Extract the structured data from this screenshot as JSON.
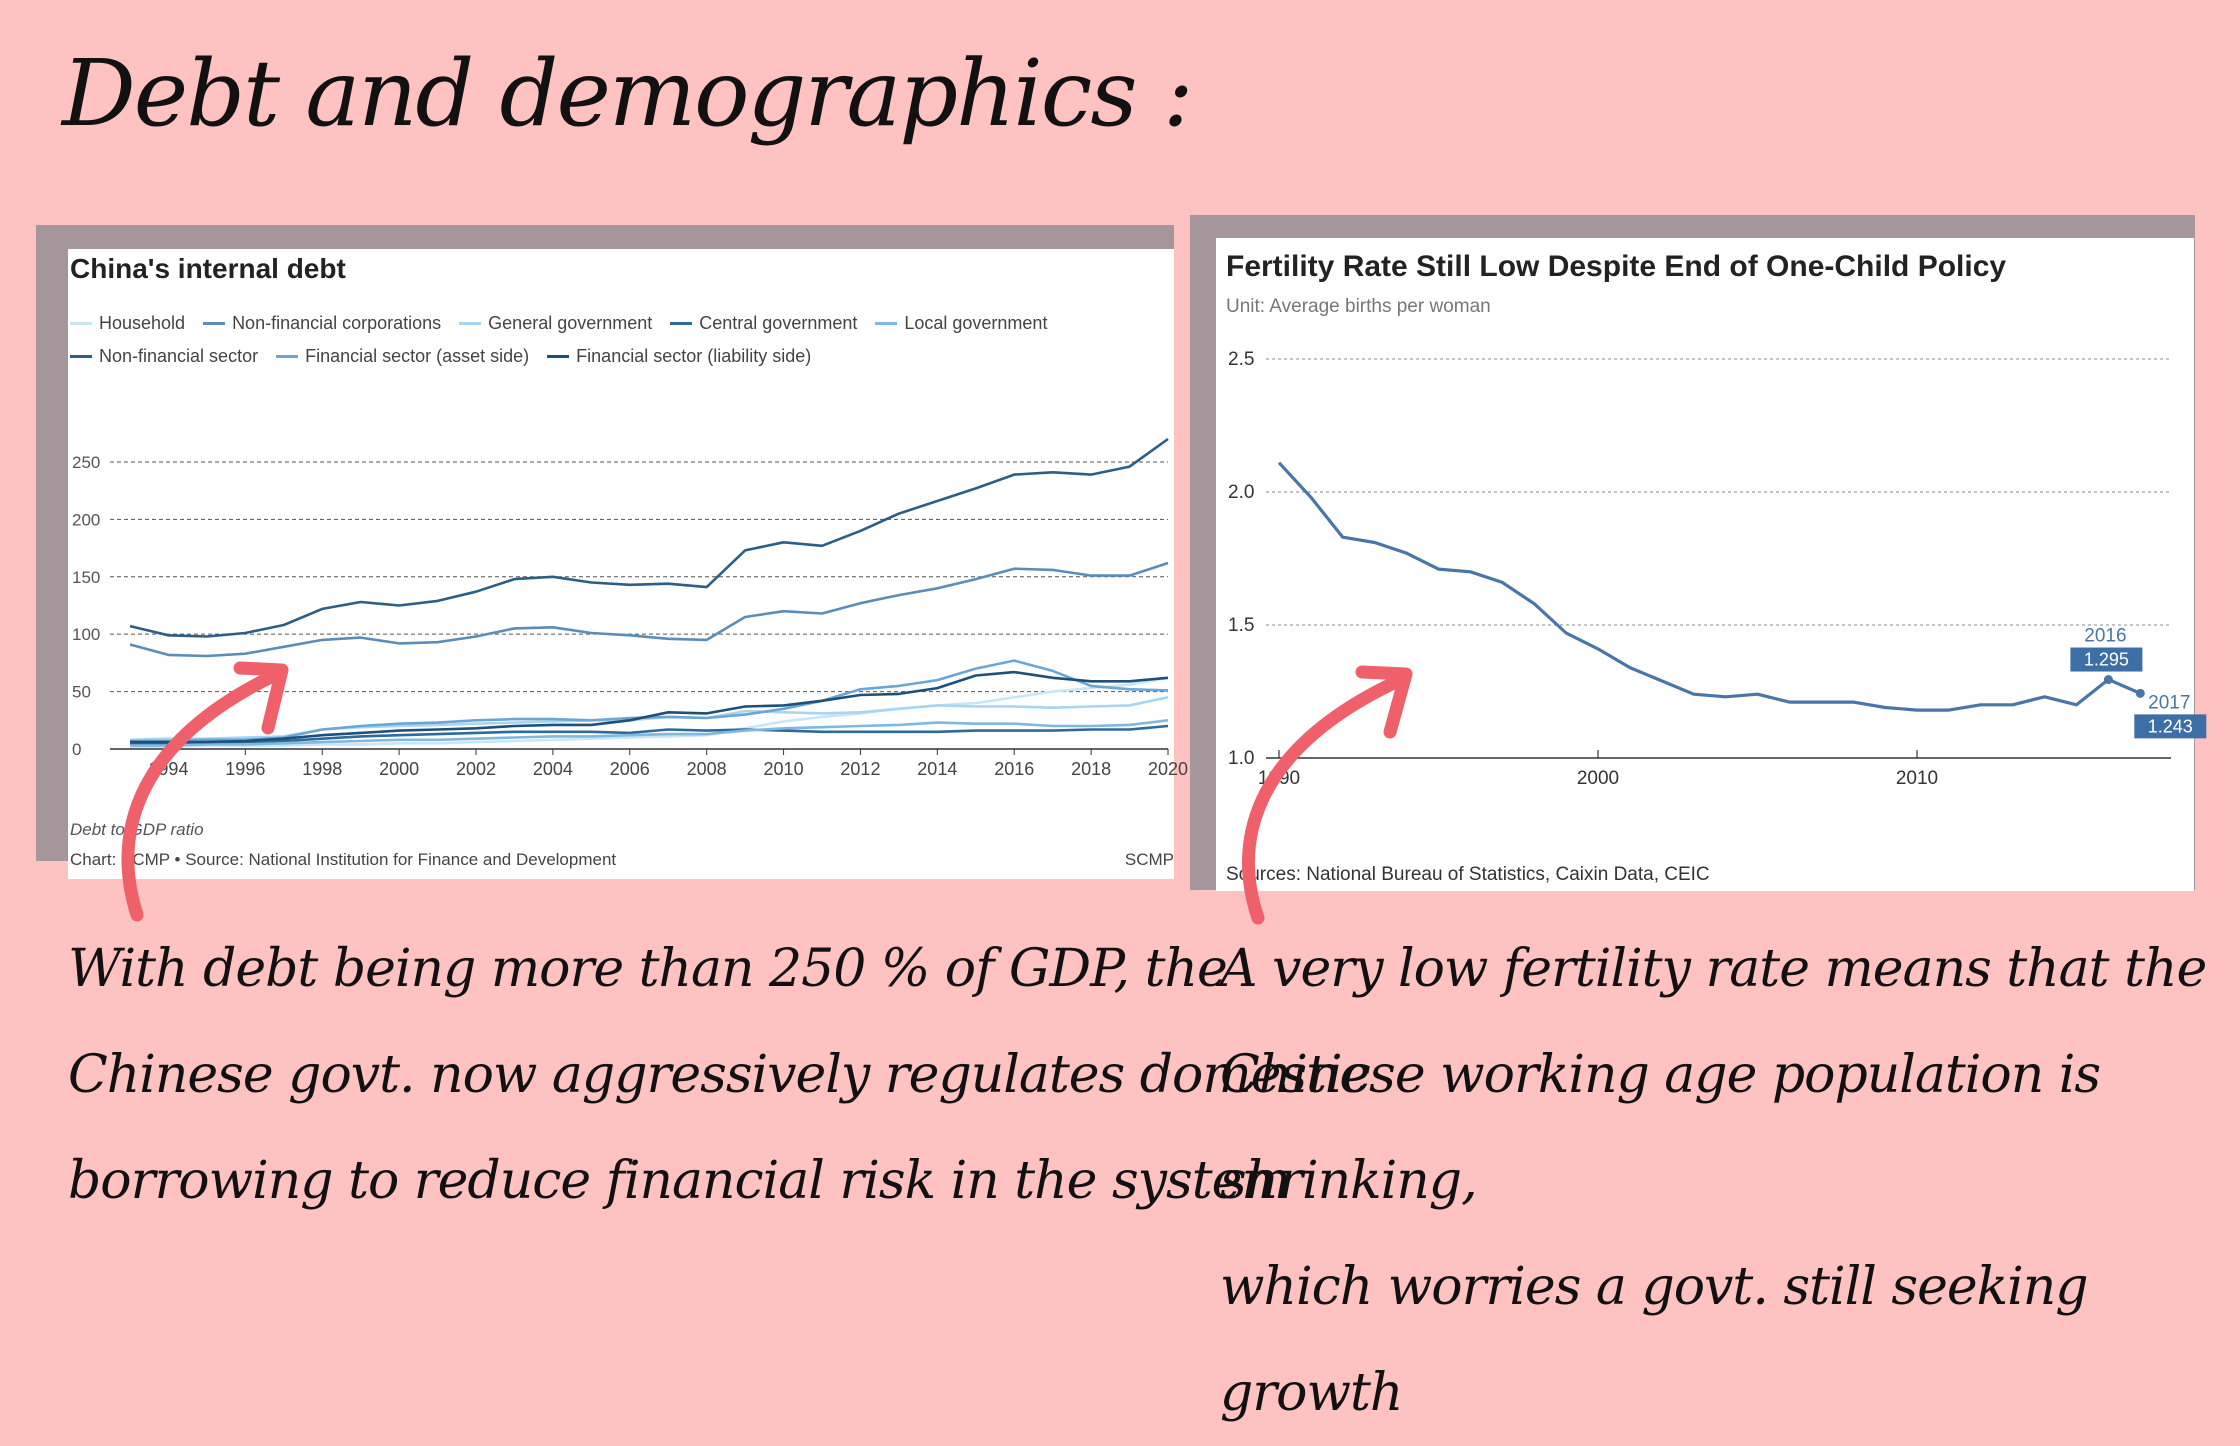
{
  "slide": {
    "title": "Debt and demographics :",
    "left_caption": [
      "With debt being more than 250 % of GDP, the",
      "Chinese govt. now aggressively regulates domestic",
      "borrowing to reduce financial risk in the system"
    ],
    "right_caption": [
      "A very low fertility rate means that the",
      "Chinese working age population is shrinking,",
      "which worries a govt. still seeking growth"
    ],
    "arrow_color": "#f0606b",
    "background": "#fec3c1"
  },
  "debt_chart": {
    "title": "China's internal debt",
    "note": "Debt to GDP ratio",
    "source": "Chart: SCMP • Source: National Institution for Finance and Development",
    "brand": "SCMP"
  },
  "fertility_chart": {
    "title": "Fertility Rate Still Low Despite End of One-Child Policy",
    "unit": "Unit: Average births per woman",
    "source": "Sources: National Bureau of Statistics, Caixin Data, CEIC"
  },
  "chart_data": [
    {
      "type": "line",
      "title": "China's internal debt",
      "ylabel": "Debt to GDP ratio",
      "ylim": [
        0,
        270
      ],
      "yticks": [
        0,
        50,
        100,
        150,
        200,
        250
      ],
      "xticks": [
        1994,
        1996,
        1998,
        2000,
        2002,
        2004,
        2006,
        2008,
        2010,
        2012,
        2014,
        2016,
        2018,
        2020
      ],
      "xlim": [
        1993,
        2020
      ],
      "grid": true,
      "legend_position": "top",
      "x": [
        1993,
        1994,
        1995,
        1996,
        1997,
        1998,
        1999,
        2000,
        2001,
        2002,
        2003,
        2004,
        2005,
        2006,
        2007,
        2008,
        2009,
        2010,
        2011,
        2012,
        2013,
        2014,
        2015,
        2016,
        2017,
        2018,
        2019,
        2020
      ],
      "series": [
        {
          "name": "Household",
          "color": "#c9e6f7",
          "values": [
            2,
            2,
            3,
            3,
            3,
            4,
            4,
            5,
            5,
            6,
            7,
            8,
            9,
            10,
            11,
            12,
            18,
            24,
            28,
            31,
            35,
            38,
            40,
            45,
            50,
            53,
            56,
            62
          ]
        },
        {
          "name": "Non-financial corporations",
          "color": "#5b8db8",
          "values": [
            91,
            82,
            81,
            83,
            89,
            95,
            97,
            92,
            93,
            98,
            105,
            106,
            101,
            99,
            96,
            95,
            115,
            120,
            118,
            127,
            134,
            140,
            148,
            157,
            156,
            151,
            151,
            162
          ]
        },
        {
          "name": "General government",
          "color": "#a8d5ef",
          "values": [
            8,
            9,
            9,
            10,
            11,
            17,
            19,
            20,
            21,
            22,
            23,
            24,
            25,
            25,
            28,
            27,
            33,
            32,
            31,
            32,
            35,
            38,
            37,
            37,
            36,
            37,
            38,
            45
          ]
        },
        {
          "name": "Central government",
          "color": "#2f6a9b",
          "values": [
            5,
            5,
            5,
            6,
            7,
            9,
            11,
            12,
            13,
            14,
            15,
            15,
            15,
            14,
            17,
            16,
            17,
            16,
            15,
            15,
            15,
            15,
            16,
            16,
            16,
            17,
            17,
            20
          ]
        },
        {
          "name": "Local government",
          "color": "#7fb8e0",
          "values": [
            3,
            3,
            4,
            4,
            5,
            6,
            7,
            8,
            8,
            9,
            10,
            11,
            11,
            12,
            13,
            13,
            16,
            18,
            19,
            20,
            21,
            23,
            22,
            22,
            20,
            20,
            21,
            25
          ]
        },
        {
          "name": "Non-financial sector",
          "color": "#2b5f86",
          "values": [
            107,
            99,
            98,
            101,
            108,
            122,
            128,
            125,
            129,
            137,
            148,
            150,
            145,
            143,
            144,
            141,
            173,
            180,
            177,
            190,
            205,
            216,
            227,
            239,
            241,
            239,
            246,
            270
          ]
        },
        {
          "name": "Financial sector (asset side)",
          "color": "#6aa6d6",
          "values": [
            7,
            7,
            8,
            8,
            10,
            17,
            20,
            22,
            23,
            25,
            26,
            26,
            25,
            27,
            28,
            27,
            30,
            35,
            42,
            52,
            55,
            60,
            70,
            77,
            68,
            55,
            52,
            51
          ]
        },
        {
          "name": "Financial sector (liability side)",
          "color": "#1e5079",
          "values": [
            6,
            6,
            6,
            7,
            9,
            12,
            14,
            16,
            17,
            18,
            20,
            21,
            21,
            25,
            32,
            31,
            37,
            38,
            42,
            47,
            48,
            53,
            64,
            67,
            62,
            59,
            59,
            62
          ]
        }
      ]
    },
    {
      "type": "line",
      "title": "Fertility Rate Still Low Despite End of One-Child Policy",
      "ylabel": "Average births per woman",
      "ylim": [
        1.0,
        2.5
      ],
      "yticks": [
        "1.0",
        "1.5",
        "2.0",
        "2.5"
      ],
      "xticks": [
        "1990",
        "2000",
        "2010"
      ],
      "xlim": [
        1990,
        2018
      ],
      "grid": true,
      "x": [
        1990,
        1991,
        1992,
        1993,
        1994,
        1995,
        1996,
        1997,
        1998,
        1999,
        2000,
        2001,
        2002,
        2003,
        2004,
        2005,
        2006,
        2007,
        2008,
        2009,
        2010,
        2011,
        2012,
        2013,
        2014,
        2015,
        2016,
        2017
      ],
      "series": [
        {
          "name": "Fertility rate",
          "color": "#4a75a8",
          "values": [
            2.11,
            1.98,
            1.83,
            1.81,
            1.77,
            1.71,
            1.7,
            1.66,
            1.58,
            1.47,
            1.41,
            1.34,
            1.29,
            1.24,
            1.23,
            1.24,
            1.21,
            1.21,
            1.21,
            1.19,
            1.18,
            1.18,
            1.2,
            1.2,
            1.23,
            1.2,
            1.295,
            1.243
          ]
        }
      ],
      "annotations": [
        {
          "year": "2016",
          "value": "1.295"
        },
        {
          "year": "2017",
          "value": "1.243"
        }
      ]
    }
  ]
}
